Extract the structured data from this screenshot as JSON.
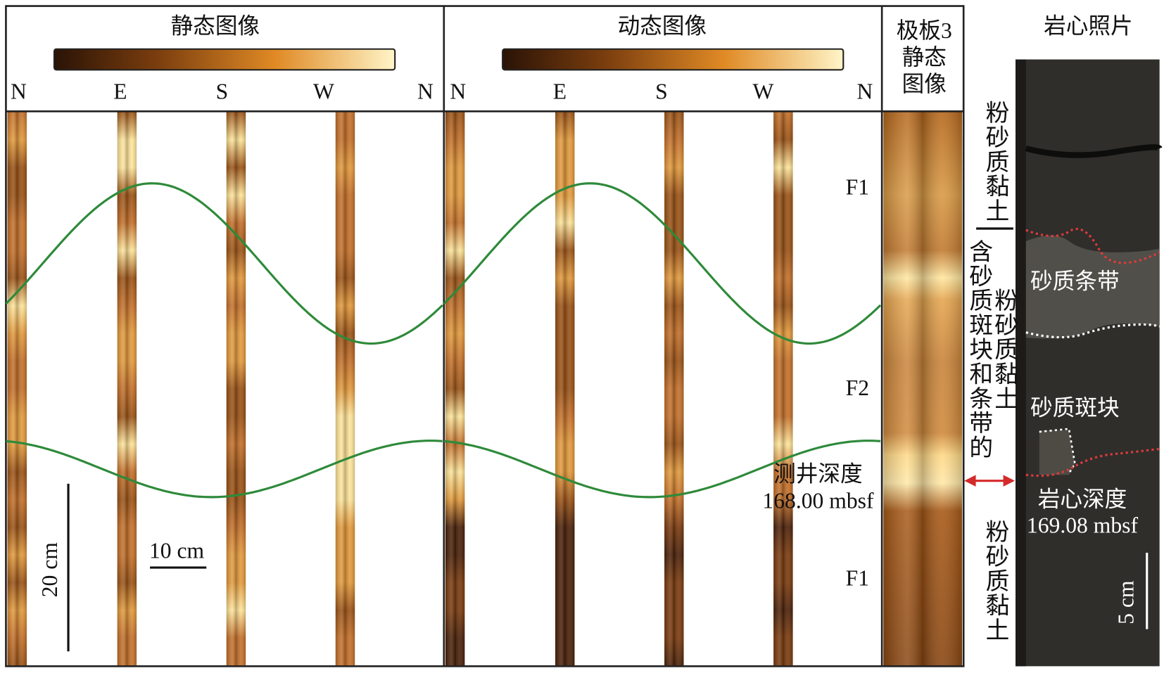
{
  "panels": [
    {
      "title": "静态图像",
      "directions": [
        "N",
        "E",
        "S",
        "W",
        "N"
      ]
    },
    {
      "title": "动态图像",
      "directions": [
        "N",
        "E",
        "S",
        "W",
        "N"
      ]
    },
    {
      "title_lines": [
        "极板3",
        "静态",
        "图像"
      ]
    }
  ],
  "zones": [
    "F1",
    "F2",
    "F1"
  ],
  "scale_bars": {
    "vertical": "20 cm",
    "horizontal": "10 cm",
    "core": "5 cm"
  },
  "log_depth": {
    "label": "测井深度",
    "value": "168.00 mbsf"
  },
  "lithology": {
    "top": "粉砂质黏土",
    "middle": [
      "含砂质斑块和条带的",
      "粉砂质黏土"
    ],
    "bottom": "粉砂质黏土"
  },
  "core": {
    "title": "岩心照片",
    "labels": [
      "砂质条带",
      "砂质斑块"
    ],
    "depth_label": "岩心深度",
    "depth_value": "169.08 mbsf"
  }
}
